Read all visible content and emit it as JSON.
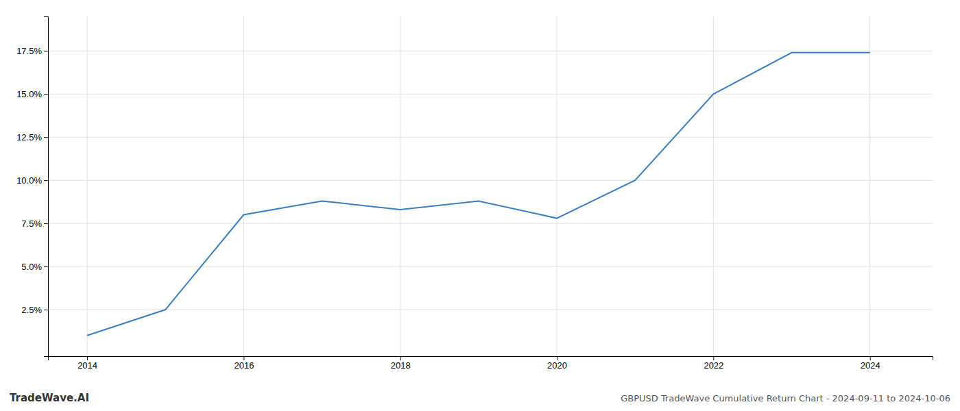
{
  "chart_data": {
    "type": "line",
    "title": "GBPUSD TradeWave Cumulative Return Chart - 2024-09-11 to 2024-10-06",
    "annotations": [
      "TradeWave.AI"
    ],
    "x": [
      2014,
      2015,
      2016,
      2017,
      2018,
      2019,
      2020,
      2021,
      2022,
      2023,
      2024
    ],
    "values": [
      0.01,
      0.025,
      0.08,
      0.088,
      0.083,
      0.088,
      0.078,
      0.1,
      0.15,
      0.174,
      0.174
    ],
    "color": "#3a7ebf",
    "xlim": [
      2013.5,
      2024.8
    ],
    "ylim": [
      -0.002,
      0.195
    ],
    "xticks": [
      2014,
      2016,
      2018,
      2020,
      2022,
      2024
    ],
    "yticks": [
      {
        "value": 0.025,
        "label": "2.5%"
      },
      {
        "value": 0.05,
        "label": "5.0%"
      },
      {
        "value": 0.075,
        "label": "7.5%"
      },
      {
        "value": 0.1,
        "label": "10.0%"
      },
      {
        "value": 0.125,
        "label": "12.5%"
      },
      {
        "value": 0.15,
        "label": "15.0%"
      },
      {
        "value": 0.175,
        "label": "17.5%"
      }
    ],
    "grid": true
  }
}
